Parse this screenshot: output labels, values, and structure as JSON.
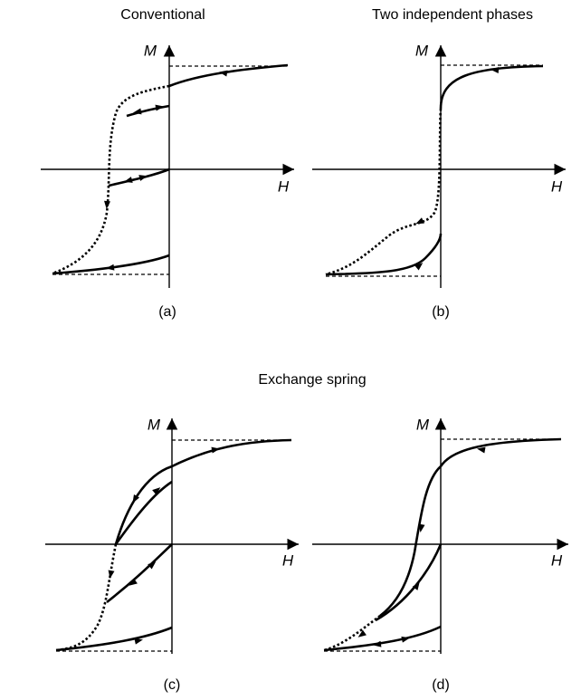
{
  "figure": {
    "panels": [
      {
        "title": "Conventional",
        "y_label": "M",
        "x_label": "H",
        "caption": "(a)"
      },
      {
        "title": "Two independent phases",
        "y_label": "M",
        "x_label": "H",
        "caption": "(b)"
      },
      {
        "y_label": "M",
        "x_label": "H",
        "caption": "(c)"
      },
      {
        "y_label": "M",
        "x_label": "H",
        "caption": "(d)"
      }
    ],
    "group_title": "Exchange spring"
  }
}
